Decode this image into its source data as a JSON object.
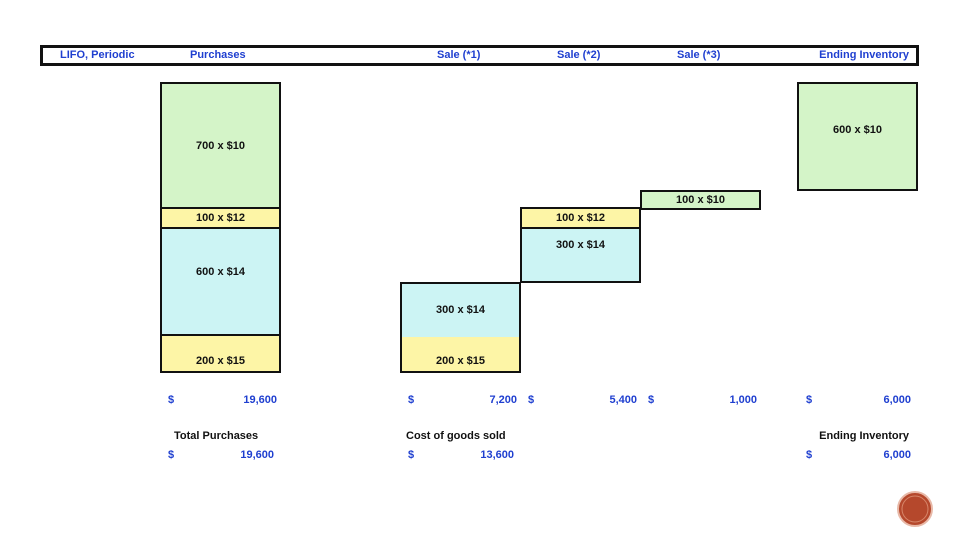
{
  "header": {
    "labels": [
      "LIFO, Periodic",
      "Purchases",
      "Sale (*1)",
      "Sale (*2)",
      "Sale (*3)",
      "Ending Inventory"
    ]
  },
  "boxes": [
    "700 x $10",
    "100 x $12",
    "600 x $14",
    "200 x $15",
    "300 x $14",
    "200 x $15",
    "100 x $12",
    "300 x $14",
    "100 x $10",
    "600 x $10"
  ],
  "amounts": [
    {
      "currency": "$",
      "value": "19,600"
    },
    {
      "currency": "$",
      "value": "7,200"
    },
    {
      "currency": "$",
      "value": "5,400"
    },
    {
      "currency": "$",
      "value": "1,000"
    },
    {
      "currency": "$",
      "value": "6,000"
    }
  ],
  "summary": [
    {
      "label": "Total Purchases",
      "currency": "$",
      "value": "19,600"
    },
    {
      "label": "Cost of goods sold",
      "currency": "$",
      "value": "13,600"
    },
    {
      "label": "Ending Inventory",
      "currency": "$",
      "value": "6,000"
    }
  ]
}
